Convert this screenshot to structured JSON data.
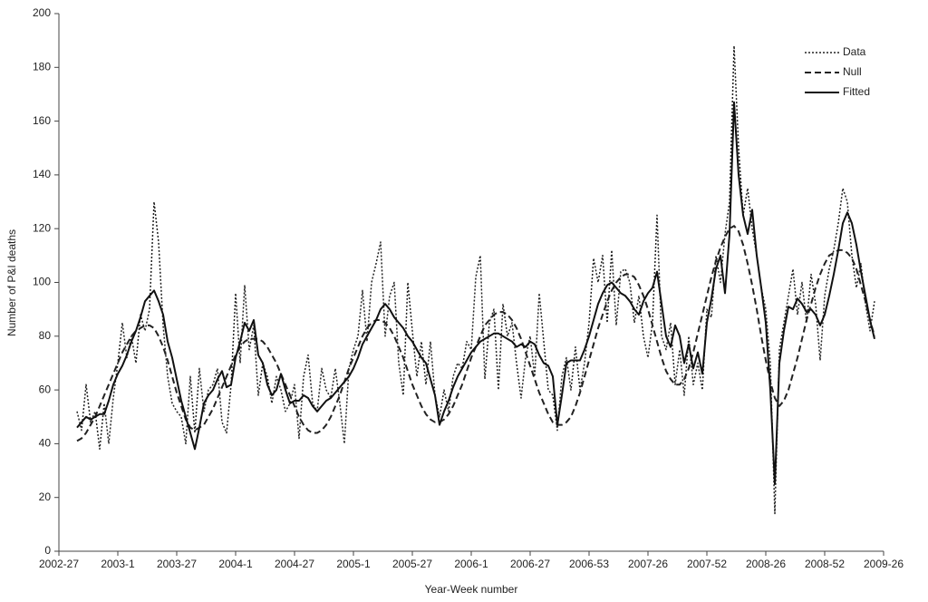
{
  "chart_data": {
    "type": "line",
    "x_label": "Year-Week number",
    "y_label": "Number of P&I deaths",
    "ylim": [
      0,
      200
    ],
    "yticks": [
      0,
      20,
      40,
      60,
      80,
      100,
      120,
      140,
      160,
      180,
      200
    ],
    "legend": "top-right",
    "categories": [
      "2002-27",
      null,
      null,
      null,
      null,
      null,
      null,
      null,
      null,
      null,
      null,
      null,
      null,
      "2003-1",
      null,
      null,
      null,
      null,
      null,
      null,
      null,
      null,
      null,
      null,
      null,
      null,
      "2003-27",
      null,
      null,
      null,
      null,
      null,
      null,
      null,
      null,
      null,
      null,
      null,
      null,
      "2004-1",
      null,
      null,
      null,
      null,
      null,
      null,
      null,
      null,
      null,
      null,
      null,
      null,
      "2004-27",
      null,
      null,
      null,
      null,
      null,
      null,
      null,
      null,
      null,
      null,
      null,
      null,
      "2005-1",
      null,
      null,
      null,
      null,
      null,
      null,
      null,
      null,
      null,
      null,
      null,
      null,
      "2005-27",
      null,
      null,
      null,
      null,
      null,
      null,
      null,
      null,
      null,
      null,
      null,
      null,
      "2006-1",
      null,
      null,
      null,
      null,
      null,
      null,
      null,
      null,
      null,
      null,
      null,
      null,
      "2006-27",
      null,
      null,
      null,
      null,
      null,
      null,
      null,
      null,
      null,
      null,
      null,
      null,
      "2006-53",
      null,
      null,
      null,
      null,
      null,
      null,
      null,
      null,
      null,
      null,
      null,
      null,
      "2007-26",
      null,
      null,
      null,
      null,
      null,
      null,
      null,
      null,
      null,
      null,
      null,
      null,
      "2007-52",
      null,
      null,
      null,
      null,
      null,
      null,
      null,
      null,
      null,
      null,
      null,
      null,
      "2008-26",
      null,
      null,
      null,
      null,
      null,
      null,
      null,
      null,
      null,
      null,
      null,
      null,
      "2008-52",
      null,
      null,
      null,
      null,
      null,
      null,
      null,
      null,
      null,
      null,
      null,
      null,
      "2009-26"
    ],
    "series": [
      {
        "name": "Data",
        "color": "#222222",
        "dash": "dotted",
        "values": [
          null,
          null,
          null,
          null,
          52,
          45,
          62,
          48,
          52,
          38,
          55,
          40,
          57,
          70,
          85,
          72,
          80,
          70,
          88,
          82,
          90,
          130,
          115,
          84,
          65,
          55,
          52,
          50,
          40,
          65,
          44,
          68,
          52,
          60,
          62,
          68,
          48,
          44,
          62,
          96,
          70,
          99,
          75,
          84,
          58,
          70,
          65,
          55,
          65,
          60,
          52,
          55,
          62,
          42,
          65,
          73,
          55,
          52,
          68,
          60,
          57,
          68,
          55,
          40,
          68,
          75,
          80,
          97,
          78,
          100,
          107,
          115,
          80,
          95,
          100,
          70,
          58,
          100,
          82,
          65,
          78,
          62,
          78,
          58,
          50,
          60,
          52,
          65,
          70,
          68,
          78,
          75,
          102,
          110,
          64,
          85,
          90,
          60,
          92,
          80,
          85,
          70,
          57,
          72,
          80,
          65,
          96,
          78,
          60,
          58,
          45,
          65,
          72,
          60,
          76,
          60,
          70,
          85,
          109,
          100,
          110,
          85,
          112,
          84,
          104,
          105,
          100,
          85,
          95,
          80,
          72,
          85,
          125,
          80,
          75,
          85,
          62,
          75,
          58,
          80,
          62,
          70,
          60,
          90,
          87,
          110,
          100,
          118,
          130,
          188,
          150,
          125,
          135,
          120,
          110,
          98,
          90,
          70,
          14,
          75,
          85,
          95,
          105,
          88,
          100,
          85,
          103,
          92,
          71,
          95,
          105,
          112,
          122,
          135,
          130,
          110,
          98,
          107,
          92,
          82,
          93,
          null,
          null
        ]
      },
      {
        "name": "Null",
        "color": "#222222",
        "dash": "dashed",
        "values": [
          null,
          null,
          null,
          null,
          41,
          42,
          44,
          47,
          50,
          54,
          58,
          62,
          66,
          70,
          74,
          77,
          80,
          82,
          83,
          84,
          84,
          83,
          80,
          76,
          71,
          65,
          59,
          54,
          49,
          46,
          45,
          46,
          47,
          50,
          53,
          57,
          61,
          65,
          69,
          73,
          76,
          78,
          79,
          79,
          79,
          78,
          76,
          73,
          70,
          66,
          62,
          58,
          54,
          50,
          47,
          45,
          44,
          44,
          45,
          47,
          50,
          54,
          58,
          63,
          68,
          72,
          76,
          80,
          83,
          85,
          86,
          86,
          85,
          83,
          80,
          76,
          72,
          67,
          62,
          58,
          54,
          51,
          49,
          48,
          48,
          49,
          51,
          54,
          58,
          62,
          67,
          72,
          76,
          80,
          84,
          86,
          88,
          89,
          89,
          88,
          86,
          83,
          79,
          74,
          69,
          64,
          59,
          55,
          51,
          48,
          47,
          47,
          48,
          50,
          54,
          59,
          65,
          71,
          77,
          83,
          88,
          93,
          97,
          100,
          102,
          103,
          103,
          102,
          99,
          95,
          90,
          84,
          78,
          72,
          67,
          64,
          62,
          62,
          64,
          68,
          74,
          81,
          88,
          95,
          102,
          108,
          113,
          117,
          120,
          121,
          119,
          114,
          107,
          99,
          90,
          80,
          71,
          63,
          57,
          54,
          56,
          60,
          66,
          72,
          79,
          86,
          92,
          98,
          103,
          107,
          110,
          111,
          112,
          112,
          111,
          109,
          105,
          99,
          93,
          86,
          80,
          null,
          null
        ]
      },
      {
        "name": "Fitted",
        "color": "#111111",
        "dash": "solid",
        "values": [
          null,
          null,
          null,
          null,
          46,
          48,
          50,
          49,
          50,
          51,
          51,
          56,
          62,
          66,
          69,
          73,
          78,
          82,
          87,
          93,
          95,
          97,
          93,
          88,
          78,
          72,
          64,
          56,
          50,
          44,
          38,
          46,
          55,
          58,
          60,
          64,
          67,
          61,
          62,
          72,
          78,
          85,
          82,
          86,
          73,
          70,
          62,
          58,
          60,
          66,
          60,
          55,
          56,
          56,
          58,
          57,
          54,
          52,
          54,
          56,
          57,
          59,
          61,
          63,
          65,
          68,
          72,
          77,
          80,
          83,
          86,
          90,
          92,
          90,
          87,
          85,
          83,
          80,
          78,
          75,
          72,
          70,
          64,
          58,
          47,
          52,
          56,
          61,
          65,
          68,
          71,
          74,
          76,
          78,
          79,
          80,
          81,
          81,
          80,
          79,
          78,
          76,
          77,
          76,
          78,
          77,
          73,
          70,
          69,
          65,
          47,
          58,
          70,
          71,
          71,
          71,
          75,
          80,
          86,
          92,
          96,
          99,
          100,
          98,
          96,
          95,
          93,
          90,
          88,
          93,
          96,
          98,
          104,
          92,
          80,
          76,
          84,
          80,
          70,
          77,
          68,
          74,
          66,
          85,
          94,
          105,
          110,
          96,
          118,
          167,
          140,
          125,
          118,
          127,
          110,
          98,
          85,
          60,
          25,
          70,
          82,
          91,
          90,
          94,
          92,
          89,
          90,
          88,
          84,
          88,
          95,
          103,
          112,
          122,
          126,
          122,
          114,
          104,
          95,
          86,
          79,
          null,
          null
        ]
      }
    ]
  }
}
